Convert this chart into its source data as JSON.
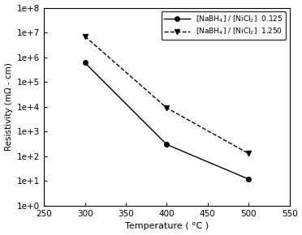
{
  "series1": {
    "label": "[NaBH$_4$] / [NiCl$_2$]  0.125",
    "x": [
      300,
      400,
      500
    ],
    "y": [
      600000.0,
      300.0,
      12
    ],
    "marker": "o",
    "linestyle": "-",
    "color": "#000000"
  },
  "series2": {
    "label": "[NaBH$_4$] / [NiCl$_2$]  1.250",
    "x": [
      300,
      400,
      500
    ],
    "y": [
      7000000.0,
      9000.0,
      130.0
    ],
    "marker": "v",
    "linestyle": "--",
    "color": "#000000"
  },
  "xlabel": "Temperature ( °C )",
  "ylabel": "Resistivity (mΩ - cm)",
  "xlim": [
    250,
    550
  ],
  "ylim_log": [
    0,
    8
  ],
  "xticks": [
    250,
    300,
    350,
    400,
    450,
    500,
    550
  ],
  "yticks_powers": [
    0,
    1,
    2,
    3,
    4,
    5,
    6,
    7,
    8
  ],
  "background_color": "#ffffff",
  "legend_loc": "upper right"
}
